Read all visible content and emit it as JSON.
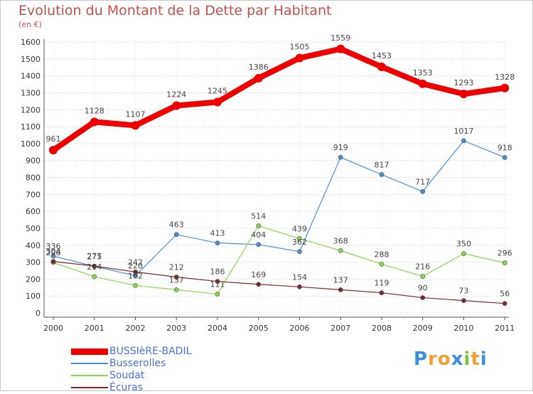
{
  "header": {
    "title": "Evolution du Montant de la Dette par Habitant",
    "subtitle": "(en €)"
  },
  "logo": {
    "letters": [
      "P",
      "r",
      "o",
      "x",
      "i",
      "t",
      "i"
    ],
    "colors": [
      "#3a8fd8",
      "#f0a030",
      "#f0a030",
      "#3a8fd8",
      "#7cc040",
      "#f0a030",
      "#3a8fd8"
    ]
  },
  "chart_data": {
    "type": "line",
    "title": "Evolution du Montant de la Dette par Habitant",
    "subtitle": "(en €)",
    "xlabel": "",
    "ylabel": "",
    "x": [
      "2000",
      "2001",
      "2002",
      "2003",
      "2004",
      "2005",
      "2006",
      "2007",
      "2008",
      "2009",
      "2010",
      "2011"
    ],
    "ylim": [
      0,
      1600
    ],
    "yticks": [
      "0",
      "100",
      "200",
      "300",
      "400",
      "500",
      "600",
      "700",
      "800",
      "900",
      "1000",
      "1100",
      "1200",
      "1300",
      "1400",
      "1500",
      "1600"
    ],
    "grid": "horizontal",
    "legend": "bottom-left",
    "series": [
      {
        "name": "BUSSIèRE-BADIL",
        "color": "#ee0000",
        "values": [
          961,
          1128,
          1107,
          1224,
          1245,
          1386,
          1505,
          1559,
          1453,
          1353,
          1293,
          1328
        ],
        "labels": [
          "961",
          "1128",
          "1107",
          "1224",
          "1245",
          "1386",
          "1505",
          "1559",
          "1453",
          "1353",
          "1293",
          "1328"
        ]
      },
      {
        "name": "Busserolles",
        "color": "#4a90d0",
        "values": [
          336,
          275,
          220,
          463,
          413,
          404,
          362,
          919,
          817,
          717,
          1017,
          918
        ],
        "labels": [
          "336",
          "275",
          "220",
          "463",
          "413",
          "404",
          "362",
          "919",
          "817",
          "717",
          "1017",
          "918"
        ]
      },
      {
        "name": "Soudat",
        "color": "#88d850",
        "values": [
          298,
          214,
          162,
          137,
          111,
          514,
          439,
          368,
          288,
          216,
          350,
          296
        ],
        "labels": [
          "298",
          "214",
          "162",
          "137",
          "111",
          "514",
          "439",
          "368",
          "288",
          "216",
          "350",
          "296"
        ]
      },
      {
        "name": "Écuras",
        "color": "#7a2a2a",
        "values": [
          304,
          277,
          242,
          212,
          186,
          169,
          154,
          137,
          119,
          90,
          73,
          56
        ],
        "labels": [
          "304",
          "277",
          "242",
          "212",
          "186",
          "169",
          "154",
          "137",
          "119",
          "90",
          "73",
          "56"
        ]
      }
    ]
  }
}
